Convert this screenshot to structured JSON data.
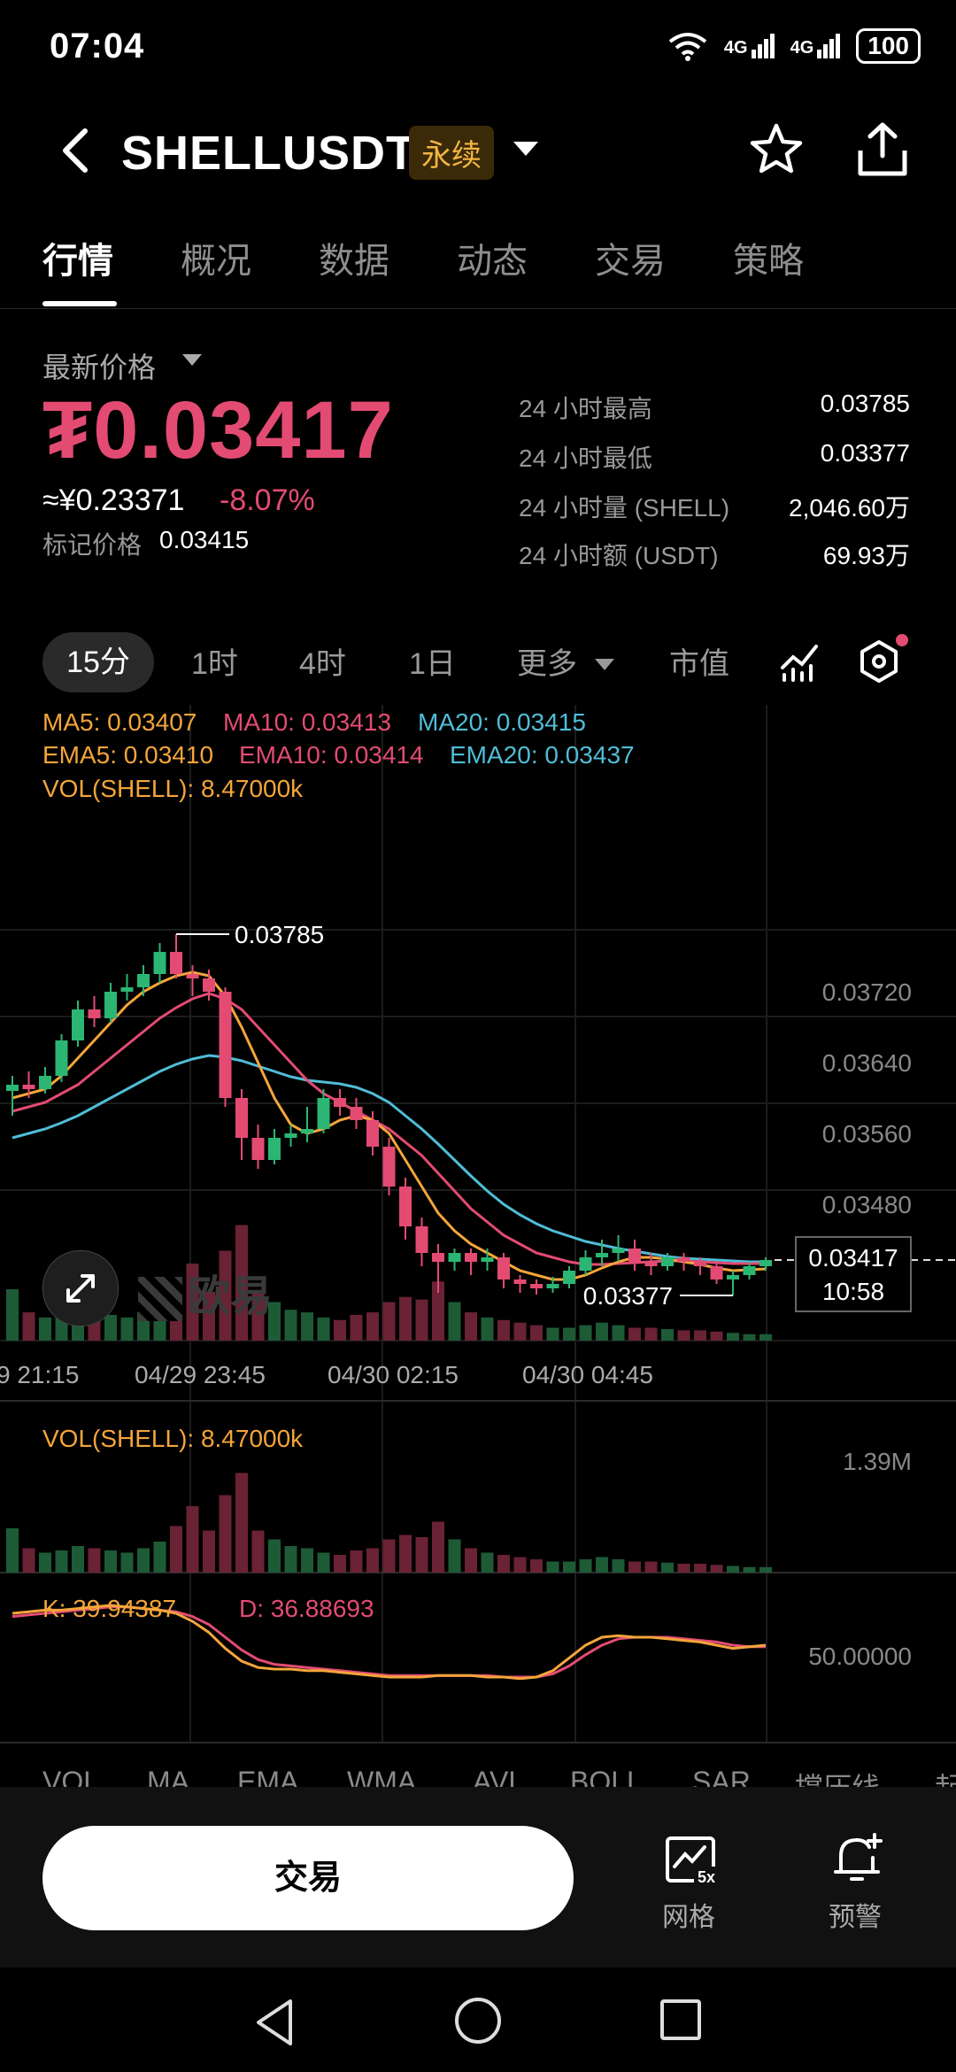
{
  "status_bar": {
    "time": "07:04",
    "network_1": "4G",
    "network_2": "4G",
    "battery": "100"
  },
  "header": {
    "symbol": "SHELLUSDT",
    "badge": "永续"
  },
  "tabs": [
    {
      "label": "行情"
    },
    {
      "label": "概况"
    },
    {
      "label": "数据"
    },
    {
      "label": "动态"
    },
    {
      "label": "交易"
    },
    {
      "label": "策略"
    }
  ],
  "price": {
    "label": "最新价格",
    "value": "₮0.03417",
    "cny": "≈¥0.23371",
    "change": "-8.07%",
    "mark_label": "标记价格",
    "mark_value": "0.03415"
  },
  "stats": [
    {
      "label": "24 小时最高",
      "value": "0.03785"
    },
    {
      "label": "24 小时最低",
      "value": "0.03377"
    },
    {
      "label": "24 小时量 (SHELL)",
      "value": "2,046.60万"
    },
    {
      "label": "24 小时额 (USDT)",
      "value": "69.93万"
    }
  ],
  "intervals": [
    "15分",
    "1时",
    "4时",
    "1日",
    "更多",
    "市值"
  ],
  "legend": {
    "ma5": "MA5: 0.03407",
    "ma10": "MA10: 0.03413",
    "ma20": "MA20: 0.03415",
    "ema5": "EMA5: 0.03410",
    "ema10": "EMA10: 0.03414",
    "ema20": "EMA20: 0.03437",
    "vol": "VOL(SHELL): 8.47000k",
    "vol_pane": "VOL(SHELL): 8.47000k",
    "k": "K: 39.94387",
    "d": "D: 36.88693"
  },
  "watermark": "欧易",
  "current_price_box": {
    "price": "0.03417",
    "countdown": "10:58"
  },
  "indicators": [
    "VOL",
    "MA",
    "EMA",
    "WMA",
    "AVL",
    "BOLL",
    "SAR",
    "撑压线",
    "起"
  ],
  "actions": {
    "trade": "交易",
    "grid": "网格",
    "alert": "预警",
    "grid_badge": "5x"
  },
  "colors": {
    "up": "#2bb673",
    "down": "#e34b72",
    "ma5": "#f4a53a",
    "ma10": "#e34b72",
    "ma20": "#4fbdd6"
  },
  "chart_data": {
    "type": "candlestick",
    "y_ticks": [
      "0.03720",
      "0.03640",
      "0.03560",
      "0.03480"
    ],
    "x_ticks": [
      "9 21:15",
      "04/29 23:45",
      "04/30 02:15",
      "04/30 04:45"
    ],
    "high_label": "0.03785",
    "low_label": "0.03377",
    "ylim": [
      0.0333,
      0.039
    ],
    "candles": [
      [
        0.03608,
        0.03615,
        0.0358,
        0.03625
      ],
      [
        0.03615,
        0.0361,
        0.036,
        0.0363
      ],
      [
        0.0361,
        0.03625,
        0.03605,
        0.03635
      ],
      [
        0.03625,
        0.03665,
        0.03618,
        0.03672
      ],
      [
        0.03665,
        0.037,
        0.03658,
        0.0371
      ],
      [
        0.037,
        0.0369,
        0.0368,
        0.03715
      ],
      [
        0.0369,
        0.0372,
        0.03685,
        0.0373
      ],
      [
        0.0372,
        0.03725,
        0.0371,
        0.0374
      ],
      [
        0.03725,
        0.0374,
        0.03715,
        0.0375
      ],
      [
        0.0374,
        0.03765,
        0.0373,
        0.03775
      ],
      [
        0.03765,
        0.0374,
        0.03735,
        0.03785
      ],
      [
        0.0374,
        0.03735,
        0.03715,
        0.0375
      ],
      [
        0.03735,
        0.0372,
        0.0371,
        0.03745
      ],
      [
        0.0372,
        0.036,
        0.0359,
        0.03725
      ],
      [
        0.036,
        0.03555,
        0.0353,
        0.0361
      ],
      [
        0.03555,
        0.0353,
        0.0352,
        0.0357
      ],
      [
        0.0353,
        0.03555,
        0.03525,
        0.03565
      ],
      [
        0.03555,
        0.0356,
        0.03545,
        0.0357
      ],
      [
        0.0356,
        0.03565,
        0.0355,
        0.0359
      ],
      [
        0.03565,
        0.036,
        0.0356,
        0.0361
      ],
      [
        0.036,
        0.0359,
        0.0358,
        0.0361
      ],
      [
        0.0359,
        0.03575,
        0.03565,
        0.036
      ],
      [
        0.03575,
        0.03545,
        0.03535,
        0.03585
      ],
      [
        0.03545,
        0.035,
        0.0349,
        0.03555
      ],
      [
        0.035,
        0.03455,
        0.0344,
        0.0351
      ],
      [
        0.03455,
        0.03425,
        0.0341,
        0.03465
      ],
      [
        0.03425,
        0.03415,
        0.0338,
        0.03435
      ],
      [
        0.03415,
        0.03425,
        0.03405,
        0.0343
      ],
      [
        0.03425,
        0.03415,
        0.034,
        0.0343
      ],
      [
        0.03415,
        0.0342,
        0.03405,
        0.0343
      ],
      [
        0.0342,
        0.03395,
        0.03385,
        0.03425
      ],
      [
        0.03395,
        0.0339,
        0.0338,
        0.034
      ],
      [
        0.0339,
        0.03385,
        0.03378,
        0.03395
      ],
      [
        0.03385,
        0.0339,
        0.0338,
        0.03398
      ],
      [
        0.0339,
        0.03405,
        0.03385,
        0.0341
      ],
      [
        0.03405,
        0.0342,
        0.034,
        0.03428
      ],
      [
        0.0342,
        0.03425,
        0.0341,
        0.0344
      ],
      [
        0.03425,
        0.0343,
        0.03415,
        0.03445
      ],
      [
        0.0343,
        0.03415,
        0.03405,
        0.0344
      ],
      [
        0.03415,
        0.0341,
        0.034,
        0.03425
      ],
      [
        0.0341,
        0.0342,
        0.03405,
        0.03425
      ],
      [
        0.0342,
        0.03415,
        0.03405,
        0.03425
      ],
      [
        0.03415,
        0.0341,
        0.034,
        0.0342
      ],
      [
        0.0341,
        0.03395,
        0.0339,
        0.03415
      ],
      [
        0.03395,
        0.034,
        0.03377,
        0.03405
      ],
      [
        0.034,
        0.0341,
        0.03395,
        0.03415
      ],
      [
        0.0341,
        0.03417,
        0.03405,
        0.0342
      ]
    ],
    "ma5": [
      0.036,
      0.03605,
      0.0361,
      0.03625,
      0.03645,
      0.03665,
      0.03685,
      0.03705,
      0.0372,
      0.0373,
      0.03738,
      0.03742,
      0.03738,
      0.03715,
      0.0368,
      0.0364,
      0.036,
      0.0357,
      0.0356,
      0.03565,
      0.03575,
      0.0358,
      0.03575,
      0.0356,
      0.0353,
      0.035,
      0.0347,
      0.0345,
      0.03435,
      0.03425,
      0.03415,
      0.03405,
      0.034,
      0.03395,
      0.03395,
      0.034,
      0.03408,
      0.03415,
      0.0342,
      0.0342,
      0.03418,
      0.03415,
      0.03412,
      0.03408,
      0.03405,
      0.03406,
      0.03407
    ],
    "ma10": [
      0.03585,
      0.0359,
      0.03595,
      0.03605,
      0.03615,
      0.0363,
      0.03645,
      0.0366,
      0.03675,
      0.0369,
      0.03702,
      0.03712,
      0.03718,
      0.03712,
      0.037,
      0.0368,
      0.0366,
      0.0364,
      0.0362,
      0.03605,
      0.03595,
      0.03585,
      0.03575,
      0.03565,
      0.0355,
      0.03535,
      0.03515,
      0.03495,
      0.03475,
      0.0346,
      0.03445,
      0.03435,
      0.03425,
      0.0342,
      0.03415,
      0.03412,
      0.03412,
      0.03413,
      0.03414,
      0.03415,
      0.03416,
      0.03416,
      0.03415,
      0.03414,
      0.03413,
      0.03413,
      0.03413
    ],
    "ma20": [
      0.03555,
      0.0356,
      0.03565,
      0.03572,
      0.0358,
      0.0359,
      0.036,
      0.0361,
      0.0362,
      0.0363,
      0.03638,
      0.03644,
      0.03648,
      0.03646,
      0.03642,
      0.03636,
      0.0363,
      0.03624,
      0.0362,
      0.03618,
      0.03616,
      0.03612,
      0.03605,
      0.03595,
      0.0358,
      0.03565,
      0.03548,
      0.0353,
      0.03512,
      0.03495,
      0.0348,
      0.03468,
      0.03458,
      0.0345,
      0.03444,
      0.03438,
      0.03434,
      0.0343,
      0.03427,
      0.03424,
      0.03421,
      0.03419,
      0.03418,
      0.03417,
      0.03416,
      0.03415,
      0.03415
    ],
    "volume": [
      40,
      22,
      18,
      20,
      24,
      22,
      20,
      18,
      22,
      28,
      42,
      60,
      38,
      70,
      90,
      38,
      30,
      24,
      22,
      18,
      16,
      20,
      22,
      30,
      34,
      32,
      46,
      30,
      22,
      18,
      16,
      14,
      12,
      10,
      10,
      12,
      14,
      12,
      10,
      10,
      9,
      8,
      8,
      7,
      6,
      5,
      5
    ],
    "k": [
      60,
      61,
      62,
      62,
      63,
      64,
      65,
      64,
      63,
      62,
      60,
      55,
      48,
      38,
      30,
      26,
      25,
      25,
      24,
      24,
      23,
      22,
      21,
      20,
      20,
      20,
      21,
      21,
      21,
      20,
      20,
      19,
      20,
      24,
      32,
      40,
      45,
      46,
      45,
      45,
      44,
      43,
      42,
      40,
      38,
      39,
      40
    ],
    "d": [
      58,
      59,
      60,
      61,
      62,
      63,
      64,
      64,
      63,
      62,
      61,
      58,
      53,
      45,
      37,
      31,
      28,
      27,
      26,
      25,
      24,
      23,
      22,
      21,
      21,
      21,
      21,
      21,
      21,
      21,
      20,
      20,
      20,
      22,
      27,
      34,
      40,
      44,
      45,
      45,
      45,
      44,
      43,
      42,
      40,
      39,
      39
    ]
  }
}
